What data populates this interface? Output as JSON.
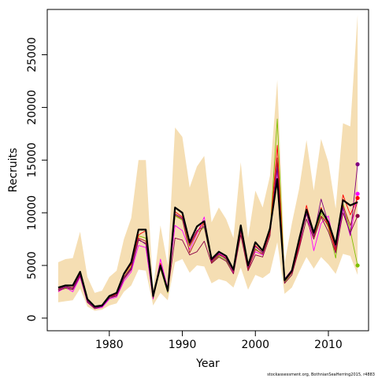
{
  "chart_data": {
    "type": "line",
    "xlabel": "Year",
    "ylabel": "Recruits",
    "caption": "stockassessment.org, BothnianSeaHerring2015, r4883",
    "xlim": [
      1971.5,
      2015.5
    ],
    "ylim": [
      -1200,
      29300
    ],
    "x_ticks": [
      1980,
      1990,
      2000,
      2010
    ],
    "y_ticks": [
      0,
      5000,
      10000,
      15000,
      20000,
      25000
    ],
    "years": [
      1973,
      1974,
      1975,
      1976,
      1977,
      1978,
      1979,
      1980,
      1981,
      1982,
      1983,
      1984,
      1985,
      1986,
      1987,
      1988,
      1989,
      1990,
      1991,
      1992,
      1993,
      1994,
      1995,
      1996,
      1997,
      1998,
      1999,
      2000,
      2001,
      2002,
      2003,
      2004,
      2005,
      2006,
      2007,
      2008,
      2009,
      2010,
      2011,
      2012,
      2013,
      2014
    ],
    "confidence_band": {
      "color": "#f5deb3",
      "upper": [
        5300,
        5600,
        5700,
        8200,
        3900,
        2400,
        2600,
        3900,
        4500,
        7500,
        9500,
        15000,
        15000,
        2800,
        8800,
        5000,
        18100,
        17200,
        12400,
        14400,
        15400,
        9100,
        10500,
        9400,
        7600,
        14800,
        7600,
        12100,
        10500,
        13500,
        22600,
        5200,
        9000,
        12300,
        16900,
        12100,
        17000,
        14800,
        10400,
        18500,
        18200,
        28800
      ],
      "lower": [
        1500,
        1600,
        1700,
        2800,
        1100,
        700,
        800,
        1200,
        1400,
        2500,
        3100,
        4600,
        4500,
        1200,
        2400,
        1700,
        5300,
        5600,
        4300,
        5000,
        4900,
        3300,
        3700,
        3500,
        2900,
        4800,
        2700,
        4100,
        3800,
        4300,
        7200,
        2300,
        2900,
        4400,
        5800,
        4700,
        5800,
        5100,
        4200,
        6100,
        5900,
        4100
      ]
    },
    "series": [
      {
        "color": "#000000",
        "width": 2.2,
        "values": [
          2900,
          3100,
          3100,
          4400,
          1800,
          1100,
          1200,
          2100,
          2400,
          4200,
          5300,
          8400,
          8400,
          2100,
          5000,
          2600,
          10500,
          10000,
          7200,
          8700,
          9200,
          5600,
          6300,
          5900,
          4600,
          8800,
          5000,
          7200,
          6400,
          8500,
          13200,
          3600,
          4500,
          7500,
          10300,
          8100,
          10300,
          9100,
          7000,
          11200,
          10700,
          11000
        ],
        "end_marker": false
      },
      {
        "color": "#7fbf00",
        "width": 0.9,
        "values": [
          2600,
          2800,
          2700,
          4100,
          1600,
          1000,
          1100,
          1900,
          2200,
          3900,
          4900,
          7800,
          7600,
          2000,
          4700,
          2400,
          9700,
          9300,
          6800,
          8100,
          8600,
          5300,
          5900,
          5500,
          4400,
          8300,
          4700,
          6600,
          6000,
          8100,
          18900,
          3400,
          4300,
          7300,
          10000,
          7800,
          10000,
          8600,
          5700,
          10900,
          8300,
          5000
        ],
        "end_marker": true
      },
      {
        "color": "#ff00ff",
        "width": 0.9,
        "values": [
          2500,
          2900,
          2500,
          3900,
          1500,
          900,
          1000,
          1800,
          2000,
          3500,
          4400,
          6900,
          6700,
          1800,
          5600,
          2800,
          8800,
          8300,
          6500,
          8000,
          9600,
          5400,
          6200,
          5800,
          4300,
          8700,
          4800,
          6300,
          6000,
          8300,
          14000,
          3700,
          4600,
          6700,
          10200,
          6400,
          9000,
          9700,
          6200,
          10400,
          7800,
          11800
        ],
        "end_marker": true
      },
      {
        "color": "#ff0000",
        "width": 0.9,
        "values": [
          2700,
          3000,
          2800,
          4200,
          1600,
          1000,
          1100,
          2000,
          2300,
          4100,
          5100,
          7900,
          8300,
          2200,
          5200,
          2700,
          10100,
          9600,
          6900,
          8200,
          9100,
          5500,
          6100,
          5700,
          4500,
          8500,
          4900,
          6900,
          6200,
          8200,
          16400,
          3500,
          4400,
          6700,
          10700,
          8100,
          10500,
          8700,
          6400,
          11700,
          9800,
          11400
        ],
        "end_marker": true
      },
      {
        "color": "#8b0045",
        "width": 0.9,
        "values": [
          2600,
          2900,
          2700,
          4000,
          1500,
          900,
          1100,
          1900,
          2100,
          3700,
          4600,
          7400,
          7100,
          1900,
          4800,
          2500,
          7600,
          7400,
          6000,
          6300,
          7300,
          5200,
          5800,
          5400,
          4200,
          7900,
          4500,
          6000,
          5800,
          7800,
          14800,
          3300,
          4100,
          6600,
          9400,
          7500,
          9600,
          8200,
          6200,
          10000,
          8100,
          9700
        ],
        "end_marker": true
      },
      {
        "color": "#b22222",
        "width": 0.9,
        "values": [
          2800,
          3000,
          2900,
          4300,
          1700,
          1100,
          1200,
          2000,
          2200,
          3900,
          4800,
          7600,
          7300,
          2100,
          4900,
          2600,
          9800,
          9400,
          6200,
          7600,
          9000,
          5300,
          6000,
          5700,
          4400,
          8200,
          4600,
          6500,
          6100,
          8000,
          15200,
          3500,
          4300,
          7000,
          9900,
          7700,
          9700,
          8800,
          6600,
          10700,
          8800,
          11100
        ],
        "end_marker": false
      },
      {
        "color": "#800080",
        "width": 0.9,
        "values": [
          2700,
          3000,
          2800,
          4100,
          1600,
          1000,
          1100,
          1900,
          2200,
          3800,
          4700,
          7500,
          7000,
          2000,
          4800,
          2500,
          9900,
          9500,
          7000,
          8300,
          8700,
          5400,
          6100,
          5600,
          4500,
          8400,
          4800,
          6800,
          6200,
          8300,
          14300,
          3500,
          4400,
          7200,
          9900,
          7800,
          11300,
          9000,
          6800,
          10500,
          7900,
          14600
        ],
        "end_marker": true
      }
    ]
  }
}
